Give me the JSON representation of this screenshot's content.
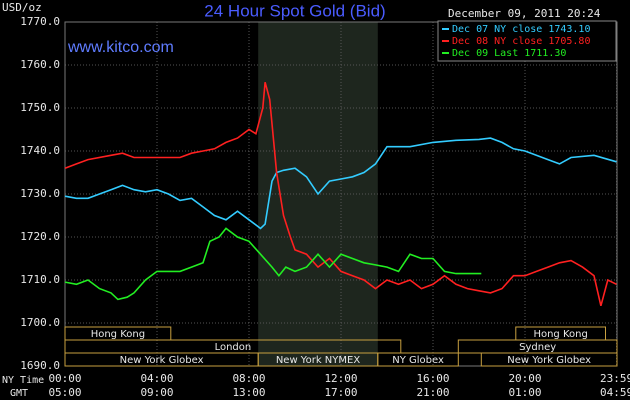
{
  "chart_data": {
    "type": "line",
    "title": "24 Hour Spot Gold (Bid)",
    "subtitle": "www.kitco.com",
    "timestamp": "December 09, 2011 20:24",
    "y_label": "USD/oz",
    "x_row_labels": [
      "NY Time",
      "GMT"
    ],
    "xlim": [
      0,
      24
    ],
    "ylim": [
      1690,
      1770
    ],
    "yticks": [
      {
        "value": 1690,
        "label": "1690.0"
      },
      {
        "value": 1700,
        "label": "1700.0"
      },
      {
        "value": 1710,
        "label": "1710.0"
      },
      {
        "value": 1720,
        "label": "1720.0"
      },
      {
        "value": 1730,
        "label": "1730.0"
      },
      {
        "value": 1740,
        "label": "1740.0"
      },
      {
        "value": 1750,
        "label": "1750.0"
      },
      {
        "value": 1760,
        "label": "1760.0"
      },
      {
        "value": 1770,
        "label": "1770.0"
      }
    ],
    "xticks": [
      {
        "value": 0,
        "label": "00:00"
      },
      {
        "value": 4,
        "label": "04:00"
      },
      {
        "value": 8,
        "label": "08:00"
      },
      {
        "value": 12,
        "label": "12:00"
      },
      {
        "value": 16,
        "label": "16:00"
      },
      {
        "value": 20,
        "label": "20:00"
      },
      {
        "value": 23.983,
        "label": "23:59"
      }
    ],
    "gmt_labels": [
      "05:00",
      "09:00",
      "13:00",
      "17:00",
      "21:00",
      "01:00",
      "04:59"
    ],
    "grid": true,
    "highlight_session": 5,
    "sessions": [
      {
        "name": "Hong Kong",
        "row": 0,
        "start": 0,
        "end": 4.6
      },
      {
        "name": "Hong Kong",
        "row": 0,
        "start": 19.6,
        "end": 23.5
      },
      {
        "name": "London",
        "row": 1,
        "start": 0,
        "end": 14.6
      },
      {
        "name": "Sydney",
        "row": 1,
        "start": 17.1,
        "end": 24
      },
      {
        "name": "New York Globex",
        "row": 2,
        "start": 0,
        "end": 8.4
      },
      {
        "name": "New York NYMEX",
        "row": 2,
        "start": 8.4,
        "end": 13.6
      },
      {
        "name": "NY Globex",
        "row": 2,
        "start": 13.6,
        "end": 17.1
      },
      {
        "name": "New York Globex",
        "row": 2,
        "start": 18.1,
        "end": 24
      }
    ],
    "series": [
      {
        "name": "Dec 07 NY close 1743.10",
        "color": "#33ccff",
        "x": [
          0,
          0.5,
          1,
          1.5,
          2,
          2.5,
          3,
          3.5,
          4,
          4.5,
          5,
          5.5,
          6,
          6.5,
          7,
          7.5,
          8,
          8.5,
          8.7,
          9,
          9.2,
          9.5,
          10,
          10.5,
          11,
          11.5,
          12,
          12.5,
          13,
          13.5,
          14,
          15,
          16,
          17,
          18,
          18.5,
          19,
          19.5,
          20,
          21,
          21.5,
          22,
          23,
          23.98
        ],
        "values": [
          1729.5,
          1729,
          1729,
          1730,
          1731,
          1732,
          1731,
          1730.5,
          1731,
          1730,
          1728.5,
          1729,
          1727,
          1725,
          1724,
          1726,
          1724,
          1722,
          1723,
          1733,
          1735,
          1735.5,
          1736,
          1734,
          1730,
          1733,
          1733.5,
          1734,
          1735,
          1737,
          1741,
          1741,
          1742,
          1742.5,
          1742.7,
          1743,
          1742,
          1740.5,
          1740,
          1738,
          1737,
          1738.5,
          1739,
          1737.5
        ]
      },
      {
        "name": "Dec 08 NY close 1705.80",
        "color": "#ff2020",
        "x": [
          0,
          0.5,
          1,
          2,
          2.5,
          3,
          4,
          5,
          5.5,
          6,
          6.5,
          7,
          7.5,
          8,
          8.3,
          8.6,
          8.7,
          8.9,
          9.2,
          9.5,
          9.8,
          10,
          10.5,
          11,
          11.5,
          12,
          12.5,
          13,
          13.5,
          14,
          14.5,
          15,
          15.5,
          16,
          16.5,
          17,
          17.5,
          18,
          18.5,
          19,
          19.5,
          20,
          20.5,
          21,
          21.5,
          22,
          22.5,
          23,
          23.3,
          23.6,
          23.98
        ],
        "values": [
          1736,
          1737,
          1738,
          1739,
          1739.5,
          1738.5,
          1738.5,
          1738.5,
          1739.5,
          1740,
          1740.5,
          1742,
          1743,
          1745,
          1744,
          1750,
          1756,
          1752,
          1735,
          1725,
          1720,
          1717,
          1716,
          1713,
          1715,
          1712,
          1711,
          1710,
          1708,
          1710,
          1709,
          1710,
          1708,
          1709,
          1711,
          1709,
          1708,
          1707.5,
          1707,
          1708,
          1711,
          1711,
          1712,
          1713,
          1714,
          1714.5,
          1713,
          1711,
          1704,
          1710,
          1709
        ]
      },
      {
        "name": "Dec 09 Last 1711.30",
        "color": "#22ee22",
        "x": [
          0,
          0.5,
          1,
          1.5,
          2,
          2.3,
          2.7,
          3,
          3.5,
          4,
          4.5,
          5,
          5.5,
          6,
          6.3,
          6.7,
          7,
          7.5,
          8,
          8.5,
          9,
          9.3,
          9.6,
          10,
          10.5,
          11,
          11.5,
          12,
          12.5,
          13,
          13.5,
          14,
          14.5,
          15,
          15.5,
          16,
          16.5,
          17,
          17.5,
          18.1
        ],
        "values": [
          1709.5,
          1709,
          1710,
          1708,
          1707,
          1705.5,
          1706,
          1707,
          1710,
          1712,
          1712,
          1712,
          1713,
          1714,
          1719,
          1720,
          1722,
          1720,
          1719,
          1716,
          1713,
          1711,
          1713,
          1712,
          1713,
          1716,
          1713,
          1716,
          1715,
          1714,
          1713.5,
          1713,
          1712,
          1716,
          1715,
          1715,
          1712,
          1711.5,
          1711.5,
          1711.5
        ]
      }
    ]
  }
}
